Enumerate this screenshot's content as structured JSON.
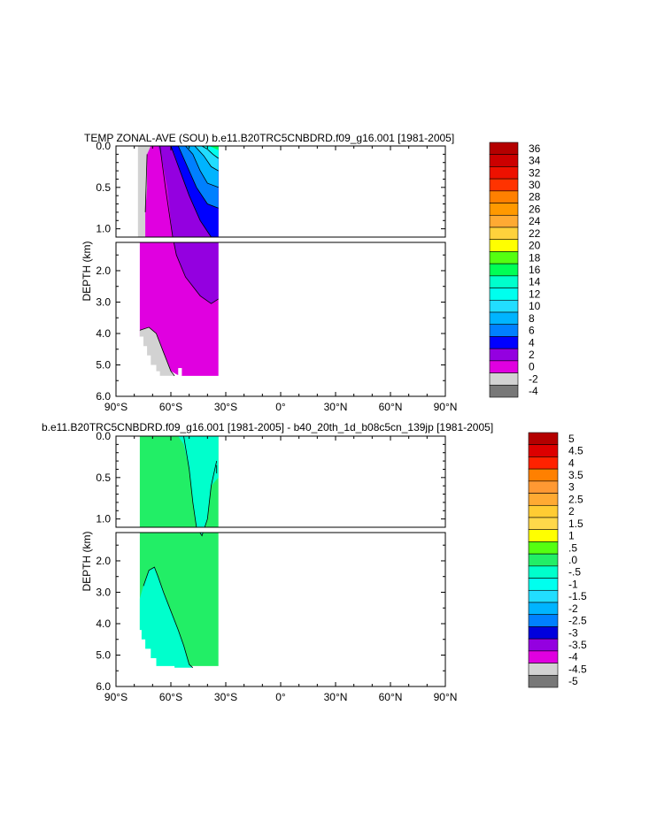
{
  "chart_data": [
    {
      "type": "heatmap",
      "title": "TEMP ZONAL-AVE (SOU) b.e11.B20TRC5CNBDRD.f09_g16.001 [1981-2005]",
      "ylabel": "DEPTH (km)",
      "x_ticks": [
        "90°S",
        "60°S",
        "30°S",
        "0°",
        "30°N",
        "60°N",
        "90°N"
      ],
      "upper_panel": {
        "ylim": [
          0,
          1.1
        ],
        "y_ticks": [
          "0.0",
          "0.5",
          "1.0"
        ]
      },
      "lower_panel": {
        "ylim": [
          1.1,
          6.0
        ],
        "y_ticks": [
          "2.0",
          "3.0",
          "4.0",
          "5.0",
          "6.0"
        ]
      },
      "xlim": [
        -90,
        90
      ],
      "data_extent_lat": [
        -78,
        -34
      ],
      "levels": [
        {
          "label": "36",
          "color": "#b40000"
        },
        {
          "label": "34",
          "color": "#cc0000"
        },
        {
          "label": "32",
          "color": "#ee1100"
        },
        {
          "label": "30",
          "color": "#ff3300"
        },
        {
          "label": "28",
          "color": "#ff8000"
        },
        {
          "label": "26",
          "color": "#ff9900"
        },
        {
          "label": "24",
          "color": "#ffaa33"
        },
        {
          "label": "22",
          "color": "#ffd23c"
        },
        {
          "label": "20",
          "color": "#ffff00"
        },
        {
          "label": "18",
          "color": "#55ff11"
        },
        {
          "label": "16",
          "color": "#00ff55"
        },
        {
          "label": "14",
          "color": "#00ffcc"
        },
        {
          "label": "12",
          "color": "#00ffee"
        },
        {
          "label": "10",
          "color": "#22ddff"
        },
        {
          "label": "8",
          "color": "#00b4ff"
        },
        {
          "label": "6",
          "color": "#0080ff"
        },
        {
          "label": "4",
          "color": "#0000ff"
        },
        {
          "label": "2",
          "color": "#9400e0"
        },
        {
          "label": "0",
          "color": "#e000e0"
        },
        {
          "label": "-2",
          "color": "#d2d2d2"
        },
        {
          "label": "-4",
          "color": "#787878"
        }
      ],
      "fields": [
        {
          "label": "2",
          "color": "#9400e0",
          "region": [
            [
              -67,
              0
            ],
            [
              -58,
              0
            ],
            [
              -57,
              0.4
            ],
            [
              -52,
              0.8
            ],
            [
              -48,
              1.1
            ],
            [
              -48,
              1.1
            ],
            [
              -45,
              2.0
            ],
            [
              -40,
              2.8
            ],
            [
              -36,
              3.0
            ],
            [
              -34,
              2.8
            ],
            [
              -34,
              1.1
            ],
            [
              -34,
              1.1
            ],
            [
              -44,
              1.0
            ],
            [
              -50,
              0.7
            ],
            [
              -55,
              0
            ],
            [
              -65,
              0.3
            ],
            [
              -67,
              1.1
            ],
            [
              -62,
              1.1
            ],
            [
              -60,
              0.5
            ]
          ]
        },
        {
          "label": "4",
          "color": "#0000ff",
          "region": [
            [
              -58,
              0
            ],
            [
              -53,
              0
            ],
            [
              -50,
              0.6
            ],
            [
              -44,
              1.0
            ],
            [
              -36,
              1.05
            ],
            [
              -34,
              1.0
            ],
            [
              -34,
              0.7
            ],
            [
              -45,
              0.6
            ],
            [
              -52,
              0.2
            ]
          ]
        },
        {
          "label": "6",
          "color": "#0080ff",
          "region": [
            [
              -53,
              0
            ],
            [
              -48,
              0
            ],
            [
              -46,
              0.4
            ],
            [
              -40,
              0.65
            ],
            [
              -34,
              0.7
            ],
            [
              -34,
              0.3
            ],
            [
              -42,
              0.25
            ],
            [
              -47,
              0
            ]
          ]
        },
        {
          "label": "8",
          "color": "#00b4ff",
          "region": [
            [
              -48,
              0
            ],
            [
              -43,
              0
            ],
            [
              -41,
              0.2
            ],
            [
              -36,
              0.3
            ],
            [
              -34,
              0.3
            ],
            [
              -34,
              0.15
            ],
            [
              -40,
              0.1
            ]
          ]
        },
        {
          "label": "10",
          "color": "#22ddff",
          "region": [
            [
              -43,
              0
            ],
            [
              -38,
              0
            ],
            [
              -35,
              0.1
            ],
            [
              -34,
              0.15
            ],
            [
              -34,
              0
            ],
            [
              -36,
              0.05
            ]
          ]
        },
        {
          "label": "-2",
          "color": "#d2d2d2",
          "region": [
            [
              -78,
              0
            ],
            [
              -74,
              0
            ],
            [
              -74,
              1.1
            ],
            [
              -78,
              1.1
            ]
          ]
        }
      ]
    },
    {
      "type": "heatmap",
      "title": "b.e11.B20TRC5CNBDRD.f09_g16.001 [1981-2005] - b40_20th_1d_b08c5cn_139jp [1981-2005]",
      "ylabel": "DEPTH (km)",
      "x_ticks": [
        "90°S",
        "60°S",
        "30°S",
        "0°",
        "30°N",
        "60°N",
        "90°N"
      ],
      "upper_panel": {
        "ylim": [
          0,
          1.1
        ],
        "y_ticks": [
          "0.0",
          "0.5",
          "1.0"
        ]
      },
      "lower_panel": {
        "ylim": [
          1.1,
          6.0
        ],
        "y_ticks": [
          "2.0",
          "3.0",
          "4.0",
          "5.0",
          "6.0"
        ]
      },
      "xlim": [
        -90,
        90
      ],
      "data_extent_lat": [
        -78,
        -34
      ],
      "levels": [
        {
          "label": "5",
          "color": "#b40000"
        },
        {
          "label": "4.5",
          "color": "#dd0000"
        },
        {
          "label": "4",
          "color": "#ff2200"
        },
        {
          "label": "3.5",
          "color": "#ff8000"
        },
        {
          "label": "3",
          "color": "#ff9933"
        },
        {
          "label": "2.5",
          "color": "#ffaa33"
        },
        {
          "label": "2",
          "color": "#ffcc33"
        },
        {
          "label": "1.5",
          "color": "#ffd84a"
        },
        {
          "label": "1",
          "color": "#ffff00"
        },
        {
          "label": ".5",
          "color": "#55ff11"
        },
        {
          "label": ".0",
          "color": "#22ee66"
        },
        {
          "label": "-.5",
          "color": "#00ffcc"
        },
        {
          "label": "-1",
          "color": "#00ffee"
        },
        {
          "label": "-1.5",
          "color": "#22ddff"
        },
        {
          "label": "-2",
          "color": "#00b4ff"
        },
        {
          "label": "-2.5",
          "color": "#0080ff"
        },
        {
          "label": "-3",
          "color": "#0000dd"
        },
        {
          "label": "-3.5",
          "color": "#9400e0"
        },
        {
          "label": "-4",
          "color": "#e000e0"
        },
        {
          "label": "-4.5",
          "color": "#d2d2d2"
        },
        {
          "label": "-5",
          "color": "#787878"
        }
      ]
    }
  ]
}
